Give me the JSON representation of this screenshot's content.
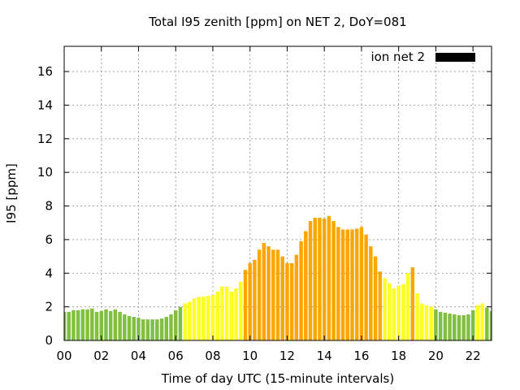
{
  "chart_data": {
    "type": "bar",
    "title": "Total I95 zenith [ppm] on NET 2, DoY=081",
    "xlabel": "Time of day UTC (15-minute intervals)",
    "ylabel": "I95 [ppm]",
    "legend": {
      "label": "ion net 2",
      "color": "#000000",
      "placement": "top-right"
    },
    "xlim": [
      0,
      23
    ],
    "ylim": [
      0,
      17.5
    ],
    "interval_hours": 0.25,
    "xticks": [
      "00",
      "02",
      "04",
      "06",
      "08",
      "10",
      "12",
      "14",
      "16",
      "18",
      "20",
      "22"
    ],
    "yticks": [
      0,
      2,
      4,
      6,
      8,
      10,
      12,
      14,
      16
    ],
    "colors": {
      "green": "#80bf40",
      "yellow": "#ffff20",
      "orange": "#ffa500"
    },
    "values": [
      1.7,
      1.7,
      1.8,
      1.8,
      1.85,
      1.85,
      1.9,
      1.7,
      1.75,
      1.85,
      1.75,
      1.85,
      1.7,
      1.55,
      1.45,
      1.4,
      1.35,
      1.25,
      1.25,
      1.25,
      1.25,
      1.3,
      1.4,
      1.55,
      1.8,
      2.0,
      2.2,
      2.3,
      2.5,
      2.6,
      2.6,
      2.65,
      2.7,
      2.9,
      3.2,
      3.2,
      2.9,
      3.1,
      3.5,
      4.2,
      4.6,
      4.8,
      5.4,
      5.8,
      5.6,
      5.4,
      5.4,
      5.0,
      4.6,
      4.6,
      5.1,
      5.9,
      6.5,
      7.1,
      7.3,
      7.3,
      7.25,
      7.4,
      7.1,
      6.75,
      6.6,
      6.6,
      6.6,
      6.65,
      6.75,
      6.3,
      5.6,
      5.0,
      4.1,
      3.7,
      3.4,
      3.1,
      3.25,
      3.35,
      4.0,
      4.35,
      2.8,
      2.2,
      2.1,
      2.0,
      1.85,
      1.7,
      1.65,
      1.6,
      1.55,
      1.5,
      1.5,
      1.55,
      1.8,
      2.1,
      2.2,
      1.95,
      1.75
    ],
    "bar_colors": [
      "green",
      "green",
      "green",
      "green",
      "green",
      "green",
      "green",
      "green",
      "green",
      "green",
      "green",
      "green",
      "green",
      "green",
      "green",
      "green",
      "green",
      "green",
      "green",
      "green",
      "green",
      "green",
      "green",
      "green",
      "green",
      "green",
      "yellow",
      "yellow",
      "yellow",
      "yellow",
      "yellow",
      "yellow",
      "yellow",
      "yellow",
      "yellow",
      "yellow",
      "yellow",
      "yellow",
      "yellow",
      "orange",
      "orange",
      "orange",
      "orange",
      "orange",
      "orange",
      "orange",
      "orange",
      "orange",
      "orange",
      "orange",
      "orange",
      "orange",
      "orange",
      "orange",
      "orange",
      "orange",
      "orange",
      "orange",
      "orange",
      "orange",
      "orange",
      "orange",
      "orange",
      "orange",
      "orange",
      "orange",
      "orange",
      "orange",
      "orange",
      "yellow",
      "yellow",
      "yellow",
      "yellow",
      "yellow",
      "yellow",
      "orange",
      "yellow",
      "yellow",
      "yellow",
      "yellow",
      "green",
      "green",
      "green",
      "green",
      "green",
      "green",
      "green",
      "green",
      "green",
      "yellow",
      "yellow",
      "green",
      "green"
    ]
  }
}
